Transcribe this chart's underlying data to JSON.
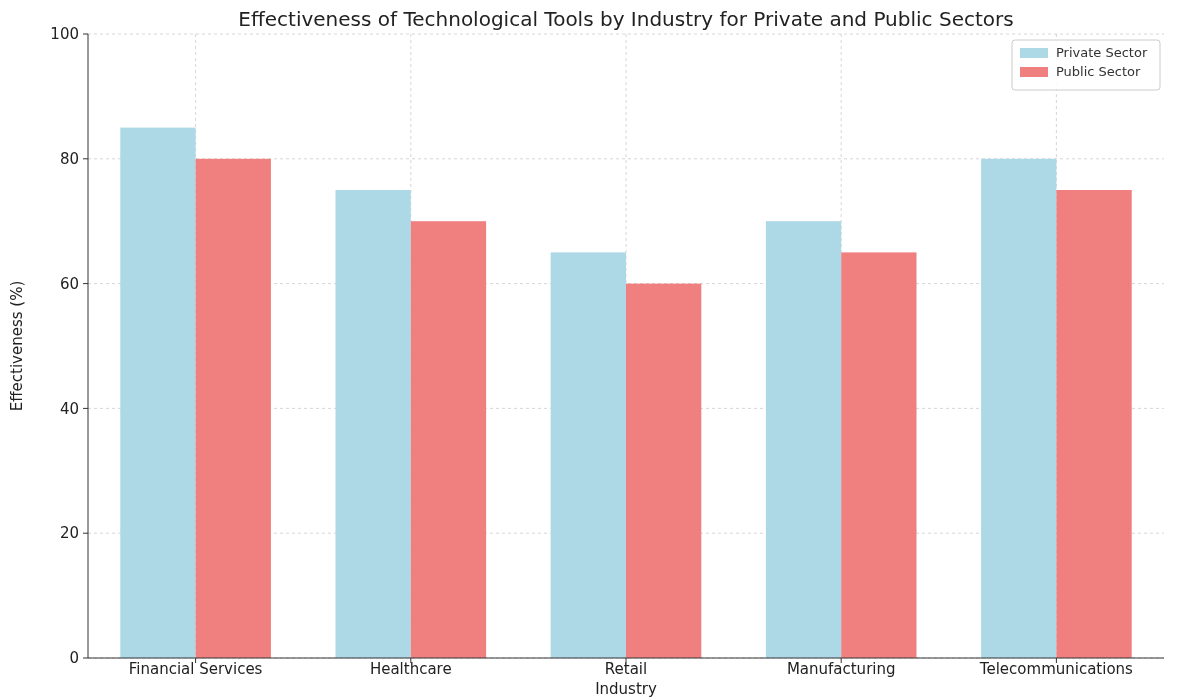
{
  "chart_data": {
    "type": "bar",
    "title": "Effectiveness of Technological Tools by Industry for Private and Public Sectors",
    "xlabel": "Industry",
    "ylabel": "Effectiveness (%)",
    "categories": [
      "Financial Services",
      "Healthcare",
      "Retail",
      "Manufacturing",
      "Telecommunications"
    ],
    "series": [
      {
        "name": "Private Sector",
        "color": "#add8e6",
        "values": [
          85,
          75,
          65,
          70,
          80
        ]
      },
      {
        "name": "Public Sector",
        "color": "#f08080",
        "values": [
          80,
          70,
          60,
          65,
          75
        ]
      }
    ],
    "ylim": [
      0,
      100
    ],
    "yticks": [
      0,
      20,
      40,
      60,
      80,
      100
    ],
    "grid": true,
    "legend": "top right"
  }
}
